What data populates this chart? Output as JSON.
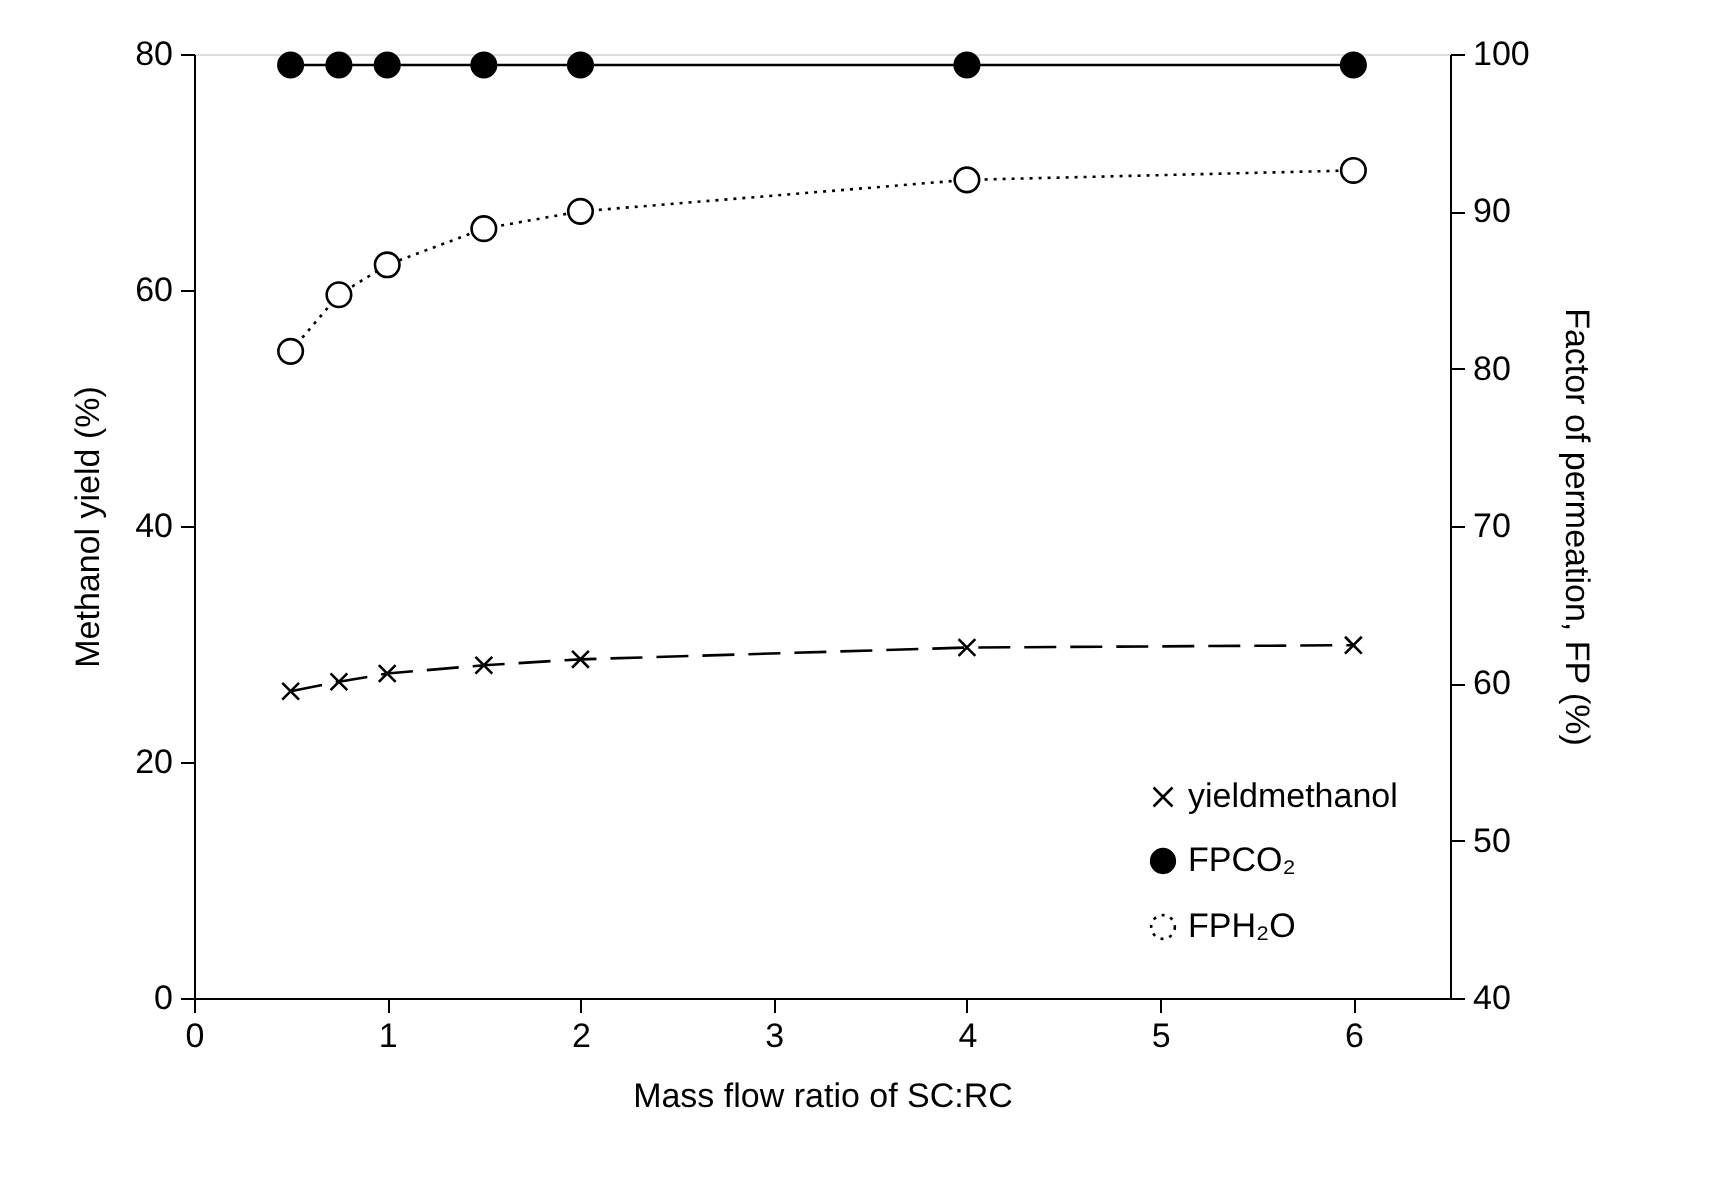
{
  "chart_data": {
    "type": "line",
    "xlabel": "Mass flow ratio of SC:RC",
    "ylabel": "Methanol yield (%)",
    "y2label": "Factor of permeation, FP (%)",
    "x": [
      0.5,
      0.75,
      1,
      1.5,
      2,
      4,
      6
    ],
    "xlim": [
      0,
      6.5
    ],
    "xticks": [
      0,
      1,
      2,
      3,
      4,
      5,
      6
    ],
    "ylim": [
      0,
      80
    ],
    "yticks": [
      0,
      20,
      40,
      60,
      80
    ],
    "y2lim": [
      40,
      100
    ],
    "y2ticks": [
      40,
      50,
      60,
      70,
      80,
      90,
      100
    ],
    "legend": "bottom right",
    "series": [
      {
        "name": "yieldmethanol",
        "color": "#000000",
        "marker": "cross",
        "line_style": "dashed",
        "values": [
          26.0,
          26.8,
          27.5,
          28.2,
          28.7,
          29.7,
          29.9
        ]
      },
      {
        "name": "FPCO₂",
        "color": "#000000",
        "marker": "circle",
        "line_style": "solid",
        "axis": "y2",
        "values": [
          99.3,
          99.3,
          99.3,
          99.3,
          99.3,
          99.3,
          99.3
        ]
      },
      {
        "name": "FPH₂O",
        "color": "#000000",
        "marker": "open_circle",
        "line_style": "dotted",
        "axis": "y2",
        "values": [
          81.1,
          84.7,
          86.6,
          88.9,
          90.0,
          92.0,
          92.6
        ]
      }
    ]
  }
}
